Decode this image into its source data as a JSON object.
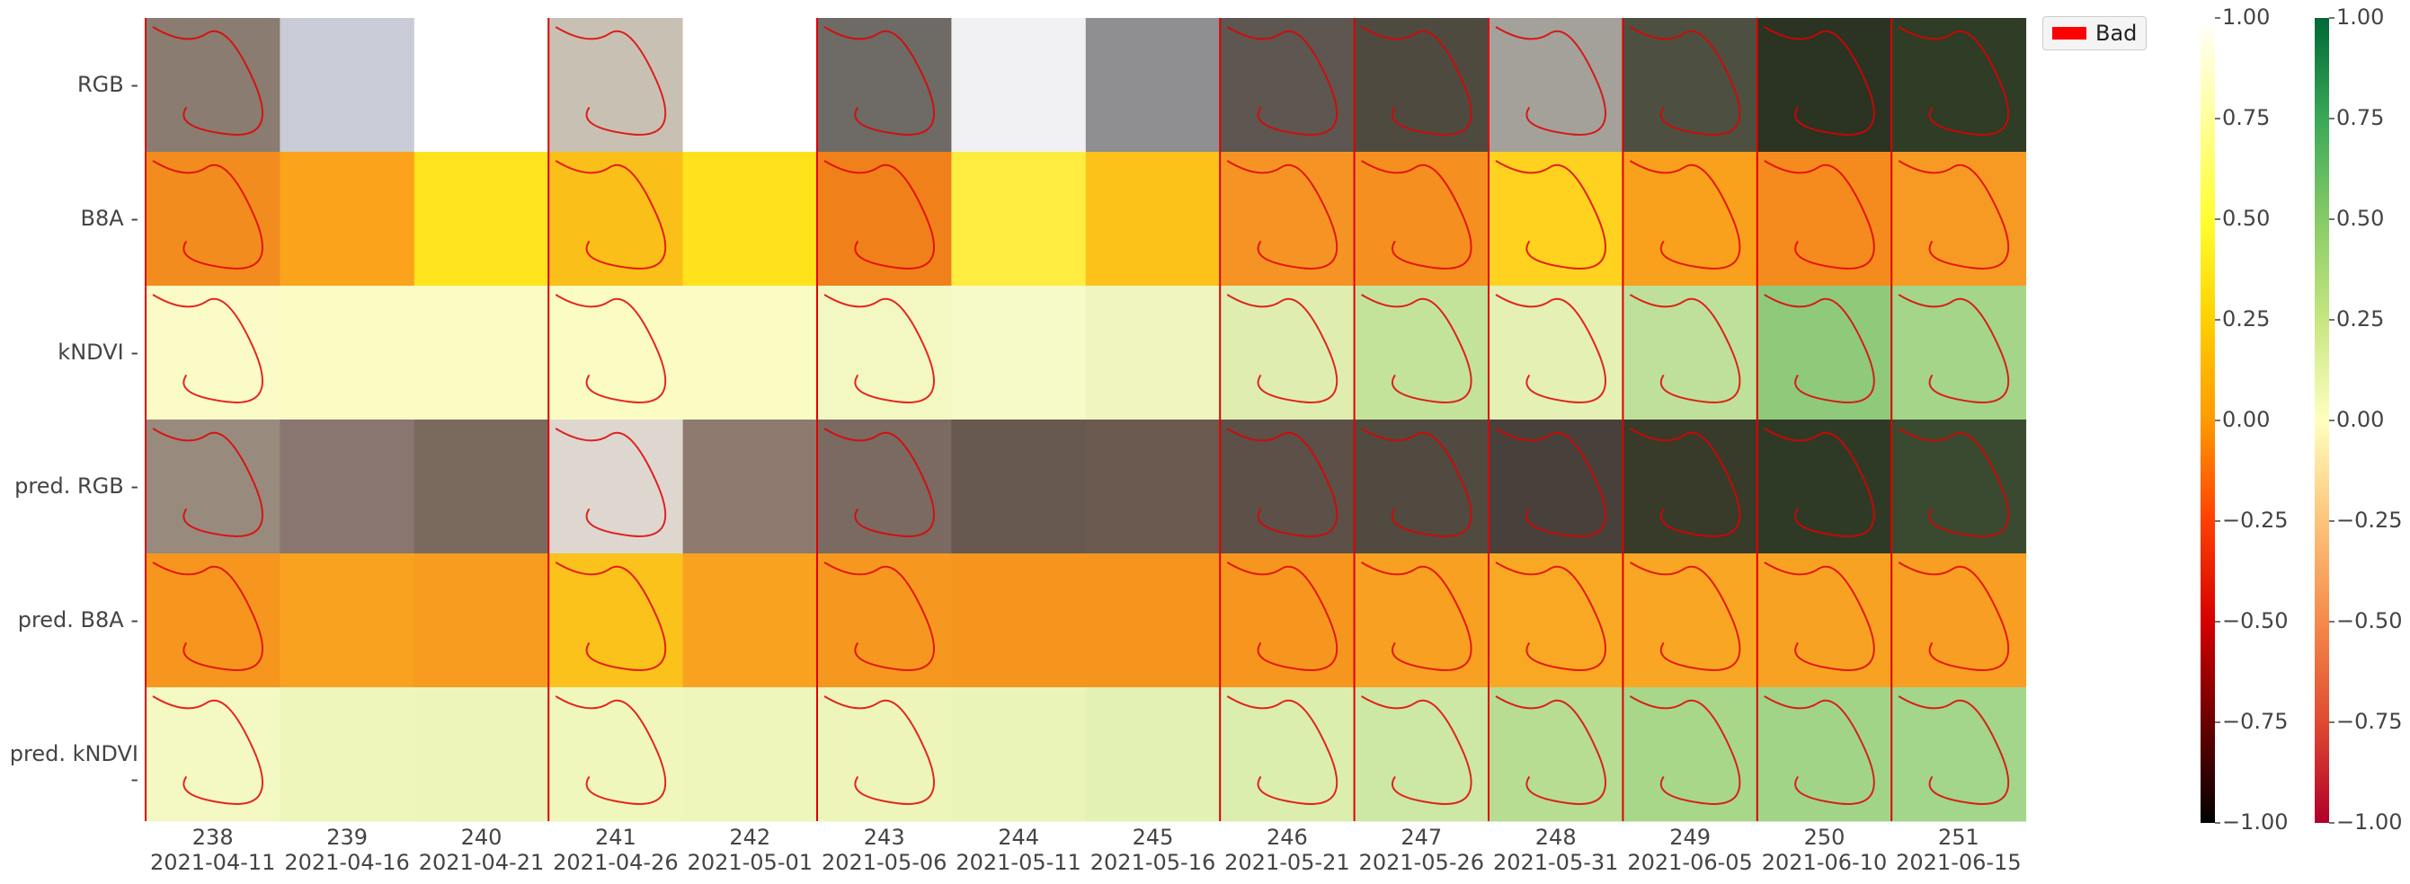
{
  "chart_data": {
    "type": "heatmap",
    "description_rows": [
      "RGB",
      "B8A",
      "kNDVI",
      "pred. RGB",
      "pred. B8A",
      "pred. kNDVI"
    ],
    "columns": [
      {
        "id": "238",
        "date": "2021-04-11",
        "bad_mask": true
      },
      {
        "id": "239",
        "date": "2021-04-16",
        "bad_mask": false
      },
      {
        "id": "240",
        "date": "2021-04-21",
        "bad_mask": false
      },
      {
        "id": "241",
        "date": "2021-04-26",
        "bad_mask": true
      },
      {
        "id": "242",
        "date": "2021-05-01",
        "bad_mask": false
      },
      {
        "id": "243",
        "date": "2021-05-06",
        "bad_mask": true
      },
      {
        "id": "244",
        "date": "2021-05-11",
        "bad_mask": false
      },
      {
        "id": "245",
        "date": "2021-05-16",
        "bad_mask": false
      },
      {
        "id": "246",
        "date": "2021-05-21",
        "bad_mask": true
      },
      {
        "id": "247",
        "date": "2021-05-26",
        "bad_mask": true
      },
      {
        "id": "248",
        "date": "2021-05-31",
        "bad_mask": true
      },
      {
        "id": "249",
        "date": "2021-06-05",
        "bad_mask": true
      },
      {
        "id": "250",
        "date": "2021-06-10",
        "bad_mask": true
      },
      {
        "id": "251",
        "date": "2021-06-15",
        "bad_mask": true
      }
    ],
    "cells": {
      "RGB": [
        "#8a7c70",
        "#c9cbd6",
        "#ffffff",
        "#c9c0b4",
        "#ffffff",
        "#6e6a66",
        "#f1f1f3",
        "#8f8e90",
        "#5e5650",
        "#4f4a40",
        "#a3a19a",
        "#4d5040",
        "#2b3322",
        "#2f3c26"
      ],
      "B8A": [
        "#f28c1e",
        "#fba31a",
        "#ffe31c",
        "#fbbf1a",
        "#ffe21c",
        "#f0801a",
        "#ffec40",
        "#fcc21a",
        "#f59424",
        "#f58f20",
        "#ffd220",
        "#f9a01c",
        "#f58a1e",
        "#f79a24"
      ],
      "kNDVI": [
        "#fbfbc8",
        "#fbfbc4",
        "#fbfbc4",
        "#fbfbc4",
        "#fbfbc4",
        "#f3f7c2",
        "#f6f9c8",
        "#f0f5c0",
        "#dfeeb0",
        "#c4e39a",
        "#e4f0b4",
        "#bfe09a",
        "#8fca7a",
        "#a4d588"
      ],
      "pred. RGB": [
        "#998a7e",
        "#897670",
        "#7a6a5e",
        "#ddd7d0",
        "#8e7a6e",
        "#7a6a62",
        "#675850",
        "#6a5a50",
        "#5c5048",
        "#504a40",
        "#48403a",
        "#383a2a",
        "#2f3a26",
        "#3a4a30"
      ],
      "pred. B8A": [
        "#f7961e",
        "#f8a220",
        "#f79c1e",
        "#fbc21c",
        "#f8a220",
        "#f69820",
        "#f6951e",
        "#f6951e",
        "#f7961e",
        "#f8a022",
        "#f9a824",
        "#f9a624",
        "#f8a224",
        "#f89e22"
      ],
      "pred. kNDVI": [
        "#f4f8c2",
        "#eff6bc",
        "#eef5ba",
        "#f0f7bc",
        "#eff6bc",
        "#eef5ba",
        "#eaf4b8",
        "#e4f1b4",
        "#dbeeae",
        "#cde7a4",
        "#b6dd92",
        "#a8d78a",
        "#a2d488",
        "#a3d58a"
      ]
    },
    "colorbar_1": {
      "cmap": "hot",
      "vmin": -1.0,
      "vmax": 1.0,
      "ticks": [
        "−1.00",
        "−0.75",
        "−0.50",
        "−0.25",
        "0.00",
        "0.25",
        "0.50",
        "0.75",
        "1.00"
      ],
      "stops": [
        "#000000",
        "#6b0000",
        "#d40000",
        "#ff4000",
        "#ff9a00",
        "#ffd000",
        "#ffff30",
        "#ffff9c",
        "#ffffff"
      ]
    },
    "colorbar_2": {
      "cmap": "RdYlGn",
      "vmin": -1.0,
      "vmax": 1.0,
      "ticks": [
        "−1.00",
        "−0.75",
        "−0.50",
        "−0.25",
        "0.00",
        "0.25",
        "0.50",
        "0.75",
        "1.00"
      ],
      "stops": [
        "#b0002a",
        "#e04a32",
        "#f58a4a",
        "#fcc47a",
        "#ffffbf",
        "#c6e681",
        "#86cb66",
        "#3aa858",
        "#006837"
      ]
    },
    "legend": {
      "label": "Bad",
      "color": "#ff0000",
      "placement": "top-right"
    },
    "grid": false
  }
}
